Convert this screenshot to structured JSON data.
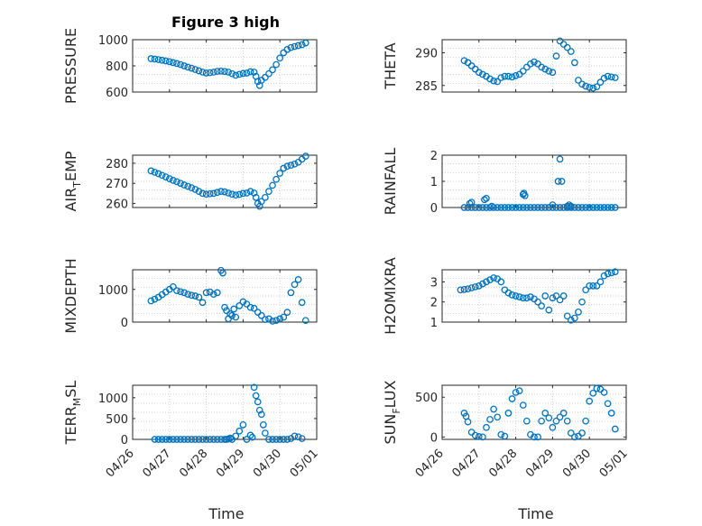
{
  "figure": {
    "title": "Figure 3 high",
    "marker_color": "#0072bd",
    "x_tick_labels": [
      "04/26",
      "04/27",
      "04/28",
      "04/29",
      "04/30",
      "05/01"
    ],
    "x_label": "Time"
  },
  "chart_data": [
    {
      "type": "scatter",
      "ylabel": "PRESSURE",
      "ylim": [
        600,
        1000
      ],
      "yticks": [
        600,
        800,
        1000
      ],
      "grid": true,
      "xlim": [
        0,
        5
      ],
      "x": [
        0.5,
        0.6,
        0.7,
        0.8,
        0.9,
        1.0,
        1.1,
        1.2,
        1.3,
        1.4,
        1.5,
        1.6,
        1.7,
        1.8,
        1.9,
        2.0,
        2.1,
        2.2,
        2.3,
        2.4,
        2.5,
        2.6,
        2.7,
        2.8,
        2.9,
        3.0,
        3.1,
        3.2,
        3.3,
        3.35,
        3.4,
        3.45,
        3.5,
        3.6,
        3.7,
        3.8,
        3.9,
        4.0,
        4.1,
        4.2,
        4.3,
        4.4,
        4.5,
        4.6,
        4.7
      ],
      "y": [
        855,
        852,
        848,
        843,
        838,
        832,
        825,
        818,
        810,
        800,
        790,
        782,
        772,
        762,
        752,
        745,
        748,
        752,
        758,
        760,
        757,
        752,
        740,
        728,
        735,
        742,
        745,
        755,
        752,
        720,
        680,
        650,
        690,
        712,
        740,
        770,
        810,
        860,
        900,
        925,
        940,
        948,
        955,
        962,
        975
      ]
    },
    {
      "type": "scatter",
      "ylabel": "THETA",
      "ylim": [
        284,
        292
      ],
      "yticks": [
        285,
        290
      ],
      "grid": true,
      "xlim": [
        0,
        5
      ],
      "x": [
        0.6,
        0.7,
        0.8,
        0.9,
        1.0,
        1.1,
        1.2,
        1.3,
        1.4,
        1.5,
        1.6,
        1.7,
        1.8,
        1.9,
        2.0,
        2.1,
        2.2,
        2.3,
        2.4,
        2.5,
        2.6,
        2.7,
        2.8,
        2.9,
        3.0,
        3.1,
        3.2,
        3.3,
        3.4,
        3.5,
        3.6,
        3.7,
        3.8,
        3.9,
        4.0,
        4.1,
        4.2,
        4.3,
        4.4,
        4.5,
        4.6,
        4.7
      ],
      "y": [
        288.8,
        288.5,
        288.0,
        287.5,
        287.0,
        286.7,
        286.4,
        286.0,
        285.7,
        285.6,
        286.2,
        286.4,
        286.4,
        286.3,
        286.5,
        286.7,
        287.2,
        287.8,
        288.3,
        288.6,
        288.3,
        287.8,
        287.5,
        287.2,
        287.0,
        289.5,
        291.8,
        291.3,
        290.8,
        290.2,
        288.5,
        285.8,
        285.2,
        284.9,
        284.7,
        284.6,
        284.8,
        285.5,
        286.1,
        286.4,
        286.3,
        286.2
      ]
    },
    {
      "type": "scatter",
      "ylabel": "AIR_TEMP",
      "ylim": [
        258,
        284
      ],
      "yticks": [
        260,
        270,
        280
      ],
      "grid": true,
      "xlim": [
        0,
        5
      ],
      "x": [
        0.5,
        0.6,
        0.7,
        0.8,
        0.9,
        1.0,
        1.1,
        1.2,
        1.3,
        1.4,
        1.5,
        1.6,
        1.7,
        1.8,
        1.9,
        2.0,
        2.1,
        2.2,
        2.3,
        2.4,
        2.5,
        2.6,
        2.7,
        2.8,
        2.9,
        3.0,
        3.1,
        3.2,
        3.3,
        3.35,
        3.4,
        3.45,
        3.5,
        3.6,
        3.7,
        3.8,
        3.9,
        4.0,
        4.1,
        4.2,
        4.3,
        4.4,
        4.5,
        4.6,
        4.7
      ],
      "y": [
        276.2,
        275.5,
        274.8,
        274.0,
        273.2,
        272.3,
        271.5,
        270.8,
        270.0,
        269.2,
        268.5,
        267.8,
        267.0,
        266.0,
        265.0,
        264.6,
        264.8,
        265.0,
        265.5,
        266.0,
        265.8,
        265.2,
        264.6,
        264.2,
        264.5,
        265.0,
        265.2,
        266.0,
        265.2,
        263.0,
        260.0,
        258.6,
        261.0,
        263.0,
        266.0,
        269.0,
        272.0,
        275.0,
        277.5,
        278.5,
        279.0,
        279.6,
        280.5,
        282.0,
        283.5
      ]
    },
    {
      "type": "scatter",
      "ylabel": "RAINFALL",
      "ylim": [
        0,
        2
      ],
      "yticks": [
        0,
        1,
        2
      ],
      "grid": true,
      "xlim": [
        0,
        5
      ],
      "x": [
        0.6,
        0.7,
        0.8,
        0.9,
        1.0,
        1.1,
        1.2,
        1.3,
        1.4,
        1.5,
        1.6,
        1.7,
        1.8,
        1.9,
        2.0,
        2.1,
        2.2,
        2.3,
        2.4,
        2.5,
        2.6,
        2.7,
        2.8,
        2.9,
        3.0,
        3.1,
        3.2,
        3.3,
        3.4,
        3.5,
        3.6,
        3.7,
        3.8,
        3.9,
        4.0,
        4.1,
        4.2,
        4.3,
        4.4,
        4.5,
        4.6,
        4.7,
        0.75,
        0.8,
        1.15,
        1.2,
        1.35,
        2.2,
        2.22,
        2.25,
        3.0,
        3.15,
        3.2,
        3.25,
        3.4,
        3.45,
        3.5
      ],
      "y": [
        0,
        0,
        0,
        0,
        0,
        0,
        0,
        0,
        0,
        0,
        0,
        0,
        0,
        0,
        0,
        0,
        0,
        0,
        0,
        0,
        0,
        0,
        0,
        0,
        0,
        0,
        0,
        0,
        0,
        0,
        0,
        0,
        0,
        0,
        0,
        0,
        0,
        0,
        0,
        0,
        0,
        0,
        0.15,
        0.2,
        0.3,
        0.35,
        0.05,
        0.5,
        0.55,
        0.45,
        0.1,
        1.0,
        1.85,
        1.0,
        0.05,
        0.1,
        0.05
      ]
    },
    {
      "type": "scatter",
      "ylabel": "MIXDEPTH",
      "ylim": [
        0,
        1600
      ],
      "yticks": [
        0,
        1000
      ],
      "grid": true,
      "xlim": [
        0,
        5
      ],
      "x": [
        0.5,
        0.6,
        0.7,
        0.8,
        0.9,
        1.0,
        1.1,
        1.2,
        1.3,
        1.4,
        1.5,
        1.6,
        1.7,
        1.8,
        1.9,
        2.0,
        2.1,
        2.2,
        2.3,
        2.4,
        2.45,
        2.5,
        2.55,
        2.6,
        2.65,
        2.7,
        2.75,
        2.8,
        2.9,
        3.0,
        3.1,
        3.2,
        3.3,
        3.4,
        3.5,
        3.6,
        3.7,
        3.8,
        3.9,
        4.0,
        4.1,
        4.2,
        4.3,
        4.4,
        4.5,
        4.6,
        4.7
      ],
      "y": [
        650,
        700,
        760,
        840,
        920,
        1000,
        1080,
        960,
        930,
        900,
        850,
        820,
        800,
        760,
        600,
        900,
        920,
        850,
        900,
        1580,
        1500,
        450,
        350,
        100,
        250,
        200,
        400,
        150,
        500,
        620,
        550,
        450,
        420,
        300,
        200,
        80,
        100,
        30,
        50,
        100,
        150,
        300,
        900,
        1150,
        1300,
        600,
        50
      ]
    },
    {
      "type": "scatter",
      "ylabel": "H2OMIXRA",
      "ylim": [
        1,
        3.6
      ],
      "yticks": [
        1,
        2,
        3
      ],
      "grid": true,
      "xlim": [
        0,
        5
      ],
      "x": [
        0.5,
        0.6,
        0.7,
        0.8,
        0.9,
        1.0,
        1.1,
        1.2,
        1.3,
        1.4,
        1.5,
        1.6,
        1.7,
        1.8,
        1.9,
        2.0,
        2.1,
        2.2,
        2.3,
        2.4,
        2.5,
        2.6,
        2.7,
        2.8,
        2.9,
        3.0,
        3.1,
        3.2,
        3.3,
        3.4,
        3.5,
        3.6,
        3.7,
        3.8,
        3.9,
        4.0,
        4.1,
        4.2,
        4.3,
        4.4,
        4.5,
        4.6,
        4.7
      ],
      "y": [
        2.6,
        2.62,
        2.65,
        2.7,
        2.75,
        2.8,
        2.9,
        3.0,
        3.1,
        3.2,
        3.15,
        3.0,
        2.6,
        2.45,
        2.35,
        2.3,
        2.25,
        2.2,
        2.2,
        2.25,
        2.15,
        2.0,
        1.8,
        2.3,
        1.6,
        2.2,
        2.3,
        2.1,
        2.3,
        1.3,
        1.1,
        1.2,
        1.5,
        2.0,
        2.6,
        2.8,
        2.8,
        2.8,
        3.0,
        3.3,
        3.4,
        3.45,
        3.5
      ]
    },
    {
      "type": "scatter",
      "ylabel": "TERR_MSL",
      "ylim": [
        0,
        1300
      ],
      "yticks": [
        0,
        500,
        1000
      ],
      "grid": true,
      "xlim": [
        0,
        5
      ],
      "x": [
        0.6,
        0.7,
        0.8,
        0.9,
        1.0,
        1.1,
        1.2,
        1.3,
        1.4,
        1.5,
        1.6,
        1.7,
        1.8,
        1.9,
        2.0,
        2.1,
        2.2,
        2.3,
        2.4,
        2.5,
        2.55,
        2.6,
        2.65,
        2.7,
        2.8,
        2.9,
        3.0,
        3.1,
        3.2,
        3.25,
        3.3,
        3.35,
        3.4,
        3.45,
        3.5,
        3.55,
        3.6,
        3.7,
        3.8,
        3.9,
        4.0,
        4.1,
        4.2,
        4.3,
        4.4,
        4.5,
        4.6
      ],
      "y": [
        0,
        0,
        0,
        0,
        0,
        0,
        0,
        0,
        0,
        0,
        0,
        0,
        0,
        0,
        0,
        0,
        0,
        0,
        0,
        0,
        0,
        10,
        30,
        0,
        80,
        200,
        350,
        0,
        100,
        50,
        1250,
        1050,
        900,
        700,
        600,
        350,
        150,
        0,
        0,
        0,
        0,
        0,
        0,
        20,
        80,
        60,
        20
      ]
    },
    {
      "type": "scatter",
      "ylabel": "SUN_FLUX",
      "ylim": [
        -30,
        650
      ],
      "yticks": [
        0,
        500
      ],
      "grid": true,
      "xlim": [
        0,
        5
      ],
      "x": [
        0.6,
        0.65,
        0.7,
        0.8,
        0.9,
        1.0,
        1.1,
        1.2,
        1.3,
        1.4,
        1.5,
        1.6,
        1.7,
        1.8,
        1.9,
        2.0,
        2.1,
        2.2,
        2.3,
        2.4,
        2.5,
        2.6,
        2.7,
        2.8,
        2.9,
        3.0,
        3.1,
        3.2,
        3.3,
        3.4,
        3.5,
        3.6,
        3.7,
        3.8,
        3.9,
        4.0,
        4.1,
        4.2,
        4.3,
        4.4,
        4.5,
        4.6,
        4.7
      ],
      "y": [
        300,
        260,
        190,
        60,
        20,
        5,
        0,
        120,
        220,
        350,
        250,
        30,
        10,
        300,
        480,
        560,
        580,
        400,
        200,
        30,
        0,
        0,
        200,
        300,
        240,
        120,
        200,
        250,
        300,
        200,
        50,
        0,
        10,
        50,
        200,
        450,
        550,
        610,
        600,
        560,
        420,
        300,
        100
      ]
    }
  ]
}
